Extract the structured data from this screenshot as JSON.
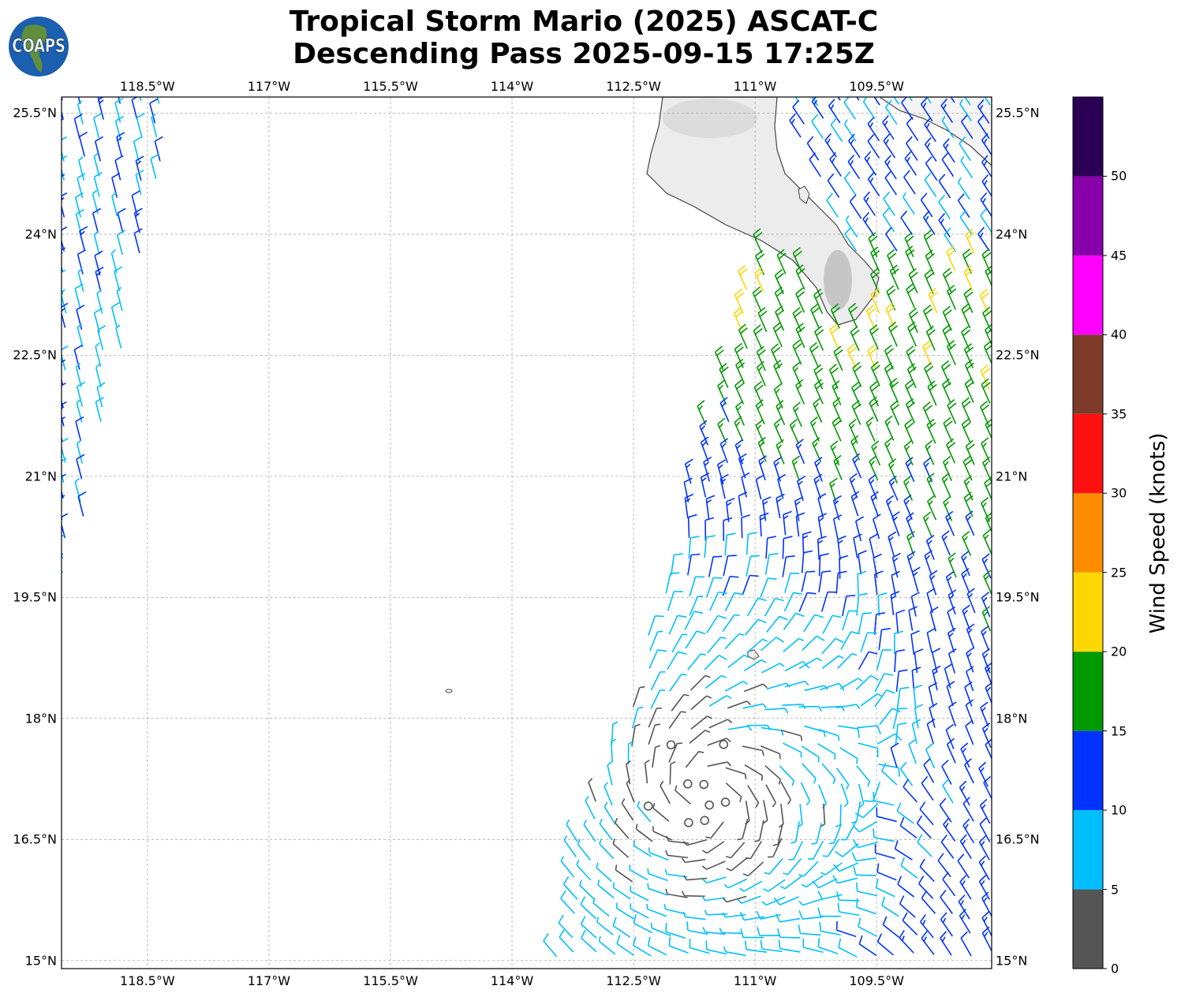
{
  "title": {
    "line1": "Tropical Storm Mario (2025) ASCAT-C",
    "line2": "Descending Pass 2025-09-15 17:25Z"
  },
  "logo": {
    "text": "COAPS"
  },
  "axes": {
    "lon_labels": [
      {
        "lon": -118.5,
        "text": "118.5°W"
      },
      {
        "lon": -117,
        "text": "117°W"
      },
      {
        "lon": -115.5,
        "text": "115.5°W"
      },
      {
        "lon": -114,
        "text": "114°W"
      },
      {
        "lon": -112.5,
        "text": "112.5°W"
      },
      {
        "lon": -111,
        "text": "111°W"
      },
      {
        "lon": -109.5,
        "text": "109.5°W"
      }
    ],
    "lat_labels": [
      {
        "lat": 25.5,
        "text": "25.5°N"
      },
      {
        "lat": 24,
        "text": "24°N"
      },
      {
        "lat": 22.5,
        "text": "22.5°N"
      },
      {
        "lat": 21,
        "text": "21°N"
      },
      {
        "lat": 19.5,
        "text": "19.5°N"
      },
      {
        "lat": 18,
        "text": "18°N"
      },
      {
        "lat": 16.5,
        "text": "16.5°N"
      },
      {
        "lat": 15,
        "text": "15°N"
      }
    ],
    "lon_range": [
      -119.56,
      -108.08
    ],
    "lat_range": [
      14.9,
      25.7
    ]
  },
  "colorbar": {
    "label": "Wind Speed (knots)",
    "ticks": [
      "0",
      "5",
      "10",
      "15",
      "20",
      "25",
      "30",
      "35",
      "40",
      "45",
      "50"
    ],
    "range": [
      0,
      55
    ],
    "colors": [
      "#555555",
      "#00bfff",
      "#0033ff",
      "#009900",
      "#ffd700",
      "#ff8c00",
      "#ff1010",
      "#7f3b2a",
      "#ff00ff",
      "#8800aa",
      "#2a0055"
    ]
  }
}
